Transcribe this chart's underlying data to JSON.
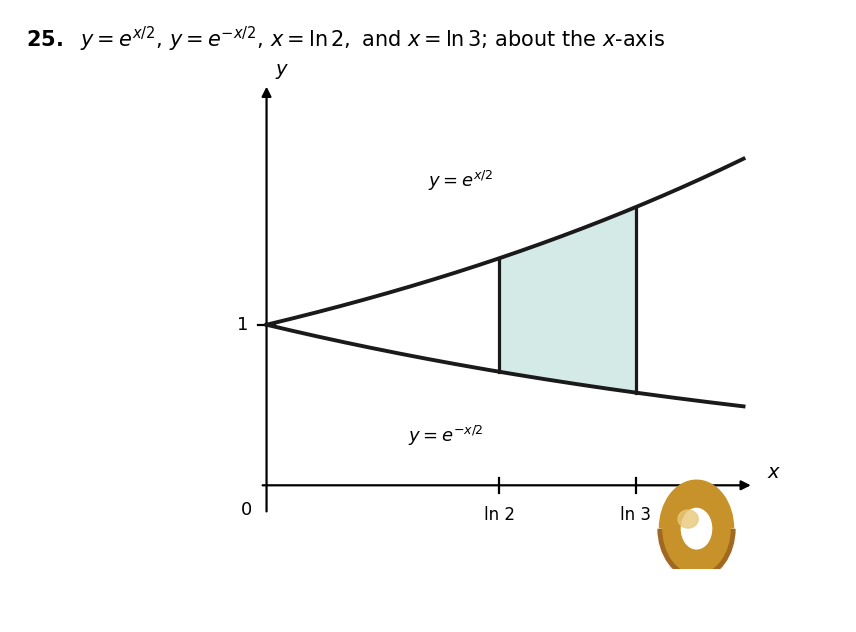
{
  "background_color": "#ffffff",
  "curve_color": "#1a1a1a",
  "fill_color": "#b8ddd8",
  "fill_alpha": 0.6,
  "ln2": 0.6931471805599453,
  "ln3": 1.0986122886681098,
  "label_ex2": "$y = e^{x/2}$",
  "label_emx2": "$y = e^{-x/2}$",
  "label_x": "$x$",
  "label_y": "$y$",
  "label_0": "0",
  "label_ln2": "ln 2",
  "label_ln3": "ln 3",
  "curve_lw": 2.8,
  "axis_lw": 1.6,
  "fig_width": 8.56,
  "fig_height": 6.32,
  "dpi": 100,
  "title_bold": "25.",
  "title_rest": "  $y = e^{x/2},\\, y = e^{-x/2},\\, x = \\ln 2,$ and $x = \\ln 3$; about the $x$-axis",
  "title_fontsize": 15,
  "torus_color1": "#c8922a",
  "torus_color2": "#e8c87a",
  "torus_color3": "#a06820"
}
